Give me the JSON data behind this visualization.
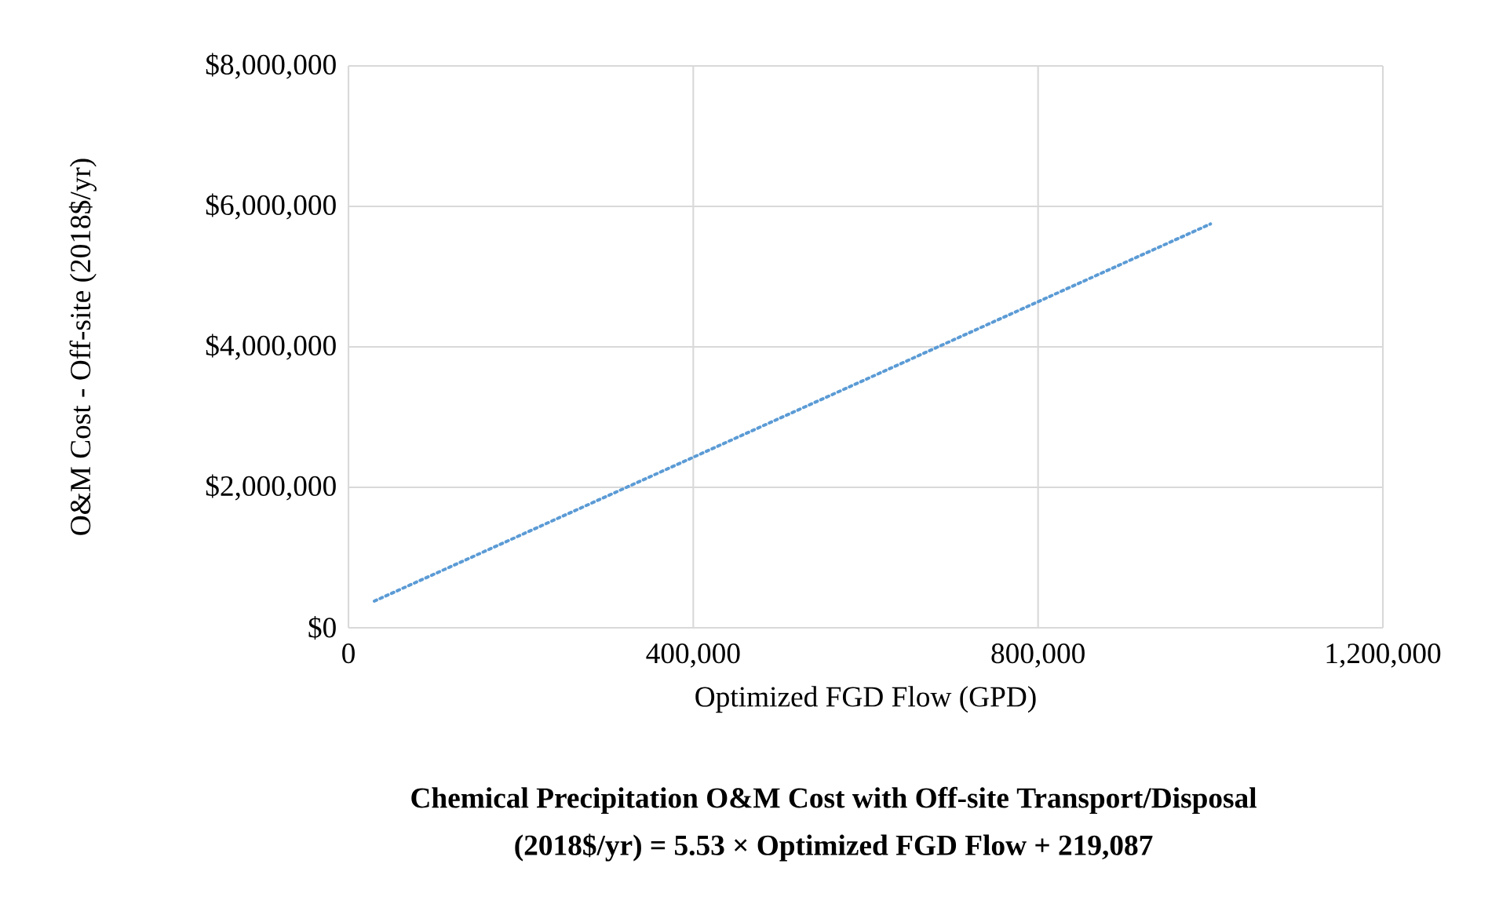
{
  "chart_data": {
    "type": "line",
    "xlabel": "Optimized FGD Flow (GPD)",
    "ylabel": "O&M Cost - Off-site (2018$/yr)",
    "annotations": [
      "Chemical Precipitation O&M Cost with Off-site Transport/Disposal",
      "(2018$/yr) = 5.53 × Optimized  FGD Flow + 219,087"
    ],
    "series": [
      {
        "color": "#5b9bd5",
        "x": [
          30000,
          1000000
        ],
        "values": [
          380000,
          5750000
        ]
      }
    ],
    "xlim": [
      0,
      1200000
    ],
    "xticks": [
      {
        "value": 0,
        "label": "0"
      },
      {
        "value": 400000,
        "label": "400,000"
      },
      {
        "value": 800000,
        "label": "800,000"
      },
      {
        "value": 1200000,
        "label": "1,200,000"
      }
    ],
    "ylim": [
      0,
      8000000
    ],
    "yticks": [
      {
        "value": 0,
        "label": "$0"
      },
      {
        "value": 2000000,
        "label": "$2,000,000"
      },
      {
        "value": 4000000,
        "label": "$4,000,000"
      },
      {
        "value": 6000000,
        "label": "$6,000,000"
      },
      {
        "value": 8000000,
        "label": "$8,000,000"
      }
    ],
    "grid": true,
    "line_style": "dotted",
    "marker": "none"
  }
}
